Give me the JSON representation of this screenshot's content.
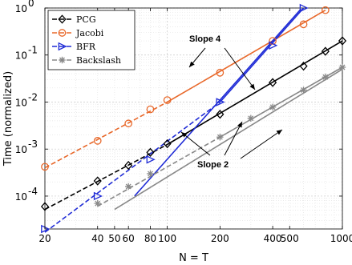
{
  "chart_data": {
    "type": "line",
    "xlabel": "N = T",
    "ylabel": "Time (normalized)",
    "xscale": "log",
    "yscale": "log",
    "xlim": [
      20,
      1000
    ],
    "ylim": [
      2e-05,
      1
    ],
    "grid": true,
    "legend_position": "top-left",
    "x_ticks": [
      20,
      40,
      50,
      60,
      80,
      100,
      200,
      400,
      500,
      1000
    ],
    "x_tick_labels": [
      "20",
      "40",
      "50",
      "60",
      "80",
      "100",
      "200",
      "400",
      "500",
      "1000"
    ],
    "y_ticks": [
      0.0001,
      0.001,
      0.01,
      0.1,
      1
    ],
    "y_tick_labels": [
      {
        "base": "10",
        "exp": "-4"
      },
      {
        "base": "10",
        "exp": "-3"
      },
      {
        "base": "10",
        "exp": "-2"
      },
      {
        "base": "10",
        "exp": "-1"
      },
      {
        "base": "10",
        "exp": "0"
      }
    ],
    "series": [
      {
        "name": "PCG",
        "color": "#000000",
        "marker": "diamond",
        "x": [
          20,
          40,
          60,
          80,
          100,
          200,
          400,
          600,
          800,
          1000
        ],
        "y": [
          6e-05,
          0.00021,
          0.00045,
          0.00085,
          0.0013,
          0.0055,
          0.026,
          0.058,
          0.12,
          0.2
        ],
        "fit_x": [
          20,
          100,
          1000
        ],
        "fit_y": [
          5.2e-05,
          0.00125,
          0.2
        ]
      },
      {
        "name": "Jacobi",
        "color": "#e8682a",
        "marker": "circle",
        "x": [
          20,
          40,
          60,
          80,
          100,
          200,
          400,
          600,
          800
        ],
        "y": [
          0.00042,
          0.0015,
          0.0035,
          0.007,
          0.011,
          0.042,
          0.2,
          0.45,
          0.9
        ],
        "fit_x": [
          20,
          100,
          800
        ],
        "fit_y": [
          0.0004,
          0.01,
          0.9
        ]
      },
      {
        "name": "BFR",
        "color": "#1f2bd6",
        "marker": "triangle-right",
        "x": [
          20,
          40,
          80,
          200,
          400,
          600
        ],
        "y": [
          2e-05,
          0.0001,
          0.0006,
          0.01,
          0.16,
          1
        ],
        "fit_x": [
          20,
          200,
          600
        ],
        "fit_y": [
          1.7e-05,
          0.01,
          1
        ],
        "steep_x": [
          65,
          580
        ],
        "steep_y": [
          0.0001,
          0.95
        ]
      },
      {
        "name": "Backslash",
        "color": "#888888",
        "marker": "asterisk",
        "x": [
          40,
          60,
          80,
          200,
          300,
          400,
          600,
          800,
          1000
        ],
        "y": [
          7e-05,
          0.00016,
          0.0003,
          0.0018,
          0.0045,
          0.0078,
          0.018,
          0.034,
          0.055
        ],
        "fit_x": [
          40,
          200,
          1000
        ],
        "fit_y": [
          6.1e-05,
          0.0018,
          0.055
        ],
        "shifted_x": [
          50,
          1000
        ],
        "shifted_y": [
          5.2e-05,
          0.05
        ]
      }
    ],
    "annotations": [
      {
        "text": "Slope 4"
      },
      {
        "text": "Slope 2"
      }
    ]
  }
}
